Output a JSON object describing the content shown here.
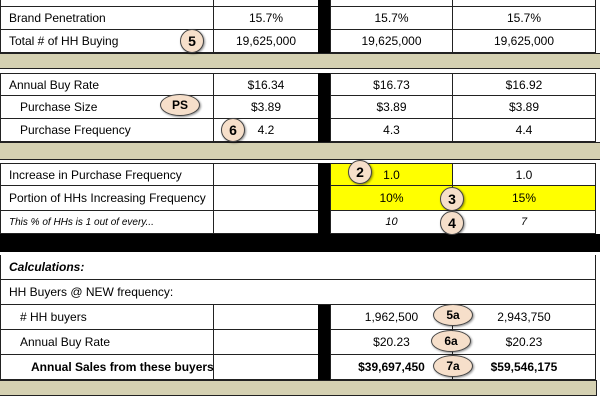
{
  "rows": {
    "brand_penetration": {
      "label": "Brand Penetration",
      "values": [
        "15.7%",
        "15.7%",
        "15.7%"
      ]
    },
    "total_hh_buying": {
      "label": "Total # of HH Buying",
      "values": [
        "19,625,000",
        "19,625,000",
        "19,625,000"
      ]
    },
    "annual_buy_rate": {
      "label": "Annual Buy Rate",
      "values": [
        "$16.34",
        "$16.73",
        "$16.92"
      ]
    },
    "purchase_size": {
      "label": "Purchase Size",
      "values": [
        "$3.89",
        "$3.89",
        "$3.89"
      ]
    },
    "purchase_frequency": {
      "label": "Purchase Frequency",
      "values": [
        "4.2",
        "4.3",
        "4.4"
      ]
    },
    "increase_purchase_frequency": {
      "label": "Increase in Purchase Frequency",
      "values": [
        "",
        "1.0",
        "1.0"
      ]
    },
    "portion_hhs_increasing": {
      "label": "Portion of HHs Increasing Frequency",
      "values": [
        "",
        "10%",
        "15%"
      ]
    },
    "pct_hhs_one_out_of": {
      "label": "This % of HHs is 1 out of every...",
      "values": [
        "",
        "10",
        "7"
      ]
    },
    "calculations": {
      "label": "Calculations:"
    },
    "hh_buyers_new_freq": {
      "label": "HH Buyers @ NEW frequency:"
    },
    "num_hh_buyers": {
      "label": "# HH buyers",
      "values": [
        "",
        "1,962,500",
        "2,943,750"
      ]
    },
    "annual_buy_rate_new": {
      "label": "Annual Buy Rate",
      "values": [
        "",
        "$20.23",
        "$20.23"
      ]
    },
    "annual_sales": {
      "label": "Annual Sales from these buyers",
      "values": [
        "",
        "$39,697,450",
        "$59,546,175"
      ]
    }
  },
  "badges": {
    "b5": "5",
    "bps": "PS",
    "b6": "6",
    "b2": "2",
    "b3": "3",
    "b4": "4",
    "b5a": "5a",
    "b6a": "6a",
    "b7a": "7a"
  },
  "colors": {
    "input_highlight": "#ffff00",
    "separator_band": "#d5d1b2",
    "badge_fill": "#f6dfca"
  }
}
